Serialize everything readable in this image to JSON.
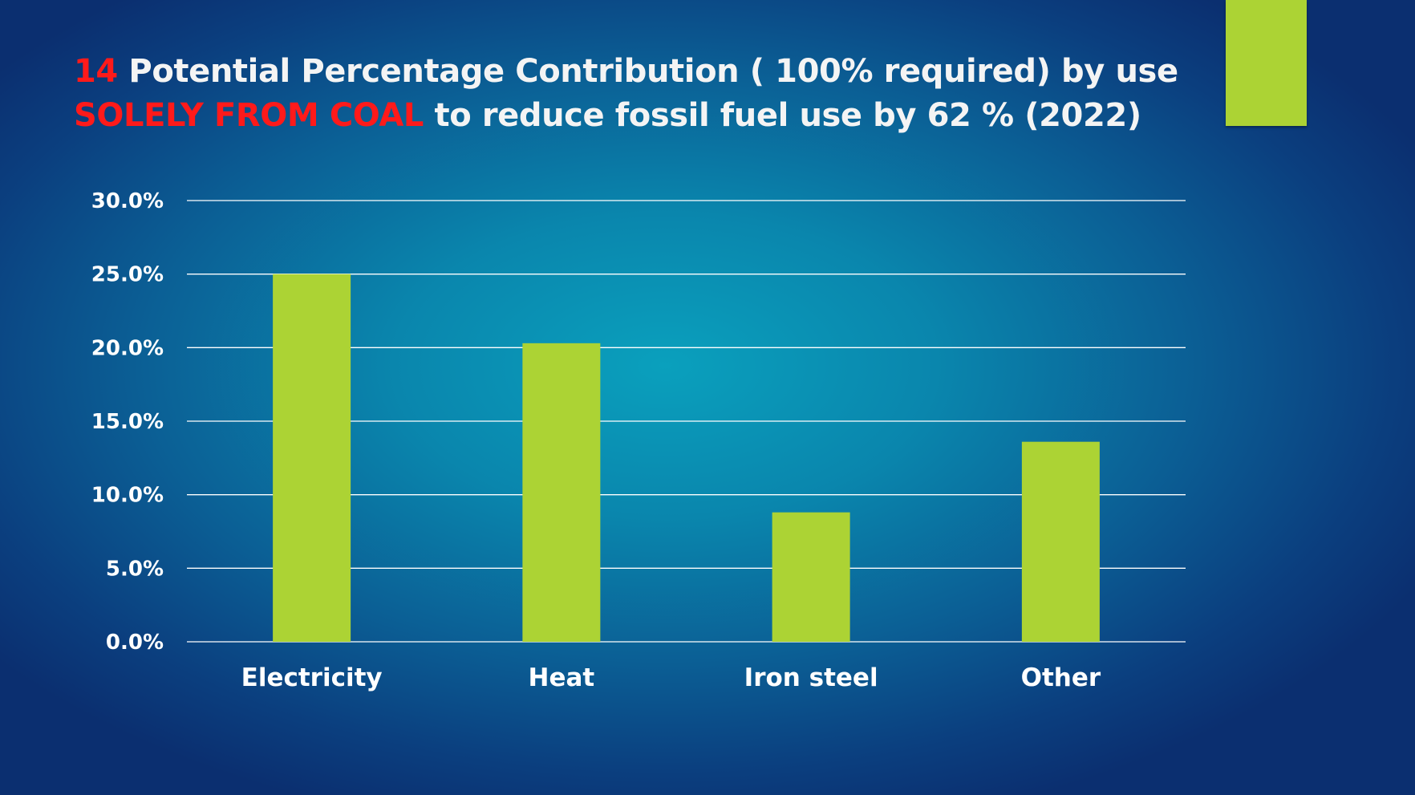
{
  "title": {
    "number": "14",
    "line1": " Potential Percentage Contribution ( 100% required) by use",
    "highlight": "SOLELY FROM COAL",
    "line2": " to reduce fossil fuel use by 62 % (2022)"
  },
  "colors": {
    "bar": "#acd334",
    "gridline": "#ffffff",
    "highlight": "#ff1a1a",
    "accent_block": "#acd334"
  },
  "chart_data": {
    "type": "bar",
    "categories": [
      "Electricity",
      "Heat",
      "Iron steel",
      "Other"
    ],
    "values": [
      25.0,
      20.3,
      8.8,
      13.6
    ],
    "ylim": [
      0,
      30
    ],
    "yticks": [
      0,
      5,
      10,
      15,
      20,
      25,
      30
    ],
    "ytick_labels": [
      "0.0%",
      "5.0%",
      "10.0%",
      "15.0%",
      "20.0%",
      "25.0%",
      "30.0%"
    ],
    "grid": true,
    "legend": "none"
  }
}
